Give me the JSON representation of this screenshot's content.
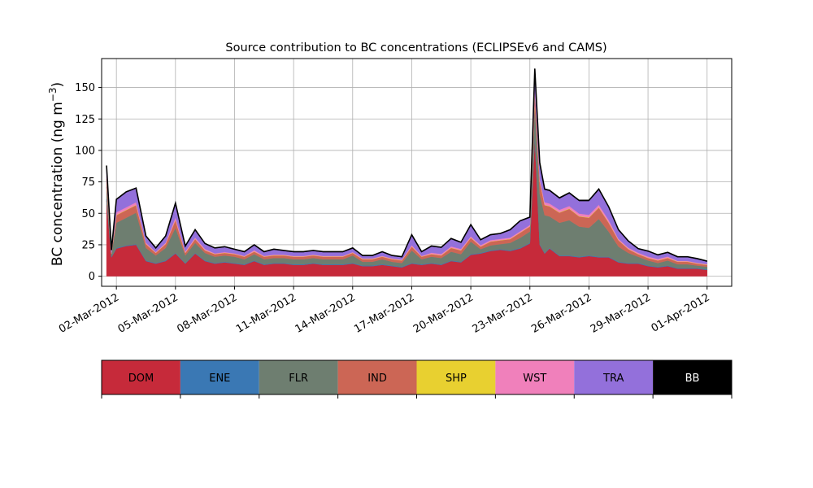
{
  "chart_data": {
    "type": "area",
    "stacked": true,
    "title": "Source contribution to BC concentrations (ECLIPSEv6 and CAMS)",
    "ylabel": "BC concentration (ng m",
    "ylabel_superscript": "−3",
    "ylabel_close": ")",
    "ylim": [
      -8,
      173
    ],
    "yticks": [
      0,
      25,
      50,
      75,
      100,
      125,
      150
    ],
    "xticks": [
      "02-Mar-2012",
      "05-Mar-2012",
      "08-Mar-2012",
      "11-Mar-2012",
      "14-Mar-2012",
      "17-Mar-2012",
      "20-Mar-2012",
      "23-Mar-2012",
      "26-Mar-2012",
      "29-Mar-2012",
      "01-Apr-2012"
    ],
    "xlim": [
      "2012-03-01T06:00",
      "2012-04-02T06:00"
    ],
    "grid": true,
    "x": [
      "2012-03-01T12:00",
      "2012-03-01T18:00",
      "2012-03-02T00:00",
      "2012-03-02T12:00",
      "2012-03-03T00:00",
      "2012-03-03T12:00",
      "2012-03-04T00:00",
      "2012-03-04T12:00",
      "2012-03-05T00:00",
      "2012-03-05T12:00",
      "2012-03-06T00:00",
      "2012-03-06T12:00",
      "2012-03-07T00:00",
      "2012-03-07T12:00",
      "2012-03-08T00:00",
      "2012-03-08T12:00",
      "2012-03-09T00:00",
      "2012-03-09T12:00",
      "2012-03-10T00:00",
      "2012-03-10T12:00",
      "2012-03-11T00:00",
      "2012-03-11T12:00",
      "2012-03-12T00:00",
      "2012-03-12T12:00",
      "2012-03-13T00:00",
      "2012-03-13T12:00",
      "2012-03-14T00:00",
      "2012-03-14T12:00",
      "2012-03-15T00:00",
      "2012-03-15T12:00",
      "2012-03-16T00:00",
      "2012-03-16T12:00",
      "2012-03-17T00:00",
      "2012-03-17T12:00",
      "2012-03-18T00:00",
      "2012-03-18T12:00",
      "2012-03-19T00:00",
      "2012-03-19T12:00",
      "2012-03-20T00:00",
      "2012-03-20T12:00",
      "2012-03-21T00:00",
      "2012-03-21T12:00",
      "2012-03-22T00:00",
      "2012-03-22T12:00",
      "2012-03-23T00:00",
      "2012-03-23T06:00",
      "2012-03-23T12:00",
      "2012-03-23T18:00",
      "2012-03-24T00:00",
      "2012-03-24T12:00",
      "2012-03-25T00:00",
      "2012-03-25T12:00",
      "2012-03-26T00:00",
      "2012-03-26T12:00",
      "2012-03-27T00:00",
      "2012-03-27T12:00",
      "2012-03-28T00:00",
      "2012-03-28T12:00",
      "2012-03-29T00:00",
      "2012-03-29T12:00",
      "2012-03-30T00:00",
      "2012-03-30T12:00",
      "2012-03-31T00:00",
      "2012-03-31T12:00",
      "2012-04-01T00:00"
    ],
    "series": [
      {
        "name": "DOM",
        "color": "#c62a3a",
        "values": [
          60,
          15,
          22,
          24,
          25,
          12,
          10,
          12,
          18,
          10,
          18,
          12,
          10,
          11,
          10,
          9,
          12,
          9,
          10,
          10,
          9,
          9,
          10,
          9,
          9,
          9,
          10,
          8,
          8,
          9,
          8,
          7,
          10,
          9,
          10,
          9,
          12,
          11,
          17,
          18,
          20,
          21,
          20,
          22,
          26,
          110,
          25,
          18,
          22,
          16,
          16,
          15,
          16,
          15,
          15,
          11,
          10,
          10,
          8,
          7,
          8,
          6,
          6,
          6,
          5
        ]
      },
      {
        "name": "ENE",
        "color": "#3a78b4",
        "values": [
          1,
          0.5,
          0.5,
          0.5,
          0.5,
          0.5,
          0.5,
          0.5,
          0.5,
          0.5,
          0.5,
          0.5,
          0.5,
          0.5,
          0.5,
          0.5,
          0.5,
          0.5,
          0.5,
          0.5,
          0.5,
          0.5,
          0.5,
          0.5,
          0.5,
          0.5,
          0.5,
          0.5,
          0.5,
          0.5,
          0.5,
          0.5,
          0.5,
          0.5,
          0.5,
          0.5,
          0.5,
          0.5,
          0.5,
          0.5,
          0.5,
          0.5,
          0.5,
          0.5,
          0.5,
          1,
          0.5,
          0.5,
          0.5,
          0.5,
          0.5,
          0.5,
          0.5,
          0.5,
          0.5,
          0.5,
          0.5,
          0.5,
          0.5,
          0.5,
          0.5,
          0.5,
          0.5,
          0.5,
          0.5
        ]
      },
      {
        "name": "FLR",
        "color": "#6e7e70",
        "values": [
          10,
          2,
          20,
          22,
          25,
          10,
          6,
          10,
          20,
          6,
          8,
          6,
          5,
          5,
          5,
          4,
          5,
          4,
          4,
          4,
          4,
          4,
          4,
          4,
          4,
          4,
          6,
          3,
          3,
          4,
          3,
          3,
          10,
          4,
          5,
          5,
          7,
          6,
          10,
          3,
          4,
          4,
          6,
          8,
          9,
          25,
          40,
          30,
          25,
          26,
          28,
          24,
          22,
          30,
          20,
          12,
          8,
          5,
          4,
          3,
          4,
          3,
          3,
          2,
          2
        ]
      },
      {
        "name": "IND",
        "color": "#cc6655",
        "values": [
          6,
          0.5,
          6,
          6,
          6,
          3,
          2,
          3,
          6,
          2,
          3,
          2,
          2,
          2,
          2,
          2,
          2,
          2,
          2,
          2,
          2,
          2,
          2,
          2,
          2,
          2,
          2,
          2,
          2,
          2,
          2,
          2,
          3,
          2,
          2,
          2,
          3,
          3,
          3,
          2,
          3,
          3,
          3,
          4,
          4,
          10,
          10,
          8,
          8,
          8,
          9,
          8,
          8,
          9,
          7,
          5,
          3,
          2,
          2,
          2,
          2,
          2,
          2,
          1.5,
          1.5
        ]
      },
      {
        "name": "SHP",
        "color": "#e8d030",
        "values": [
          0.5,
          0.2,
          0.3,
          0.3,
          0.3,
          0.2,
          0.2,
          0.2,
          0.3,
          0.2,
          0.2,
          0.2,
          0.2,
          0.2,
          0.2,
          0.2,
          0.2,
          0.2,
          0.2,
          0.2,
          0.2,
          0.2,
          0.2,
          0.2,
          0.2,
          0.2,
          0.2,
          0.2,
          0.2,
          0.2,
          0.2,
          0.2,
          0.2,
          0.2,
          0.2,
          0.2,
          0.2,
          0.2,
          0.2,
          0.2,
          0.2,
          0.2,
          0.2,
          0.2,
          0.2,
          0.5,
          0.3,
          0.3,
          0.3,
          0.3,
          0.3,
          0.3,
          0.3,
          0.3,
          0.3,
          0.2,
          0.2,
          0.2,
          0.2,
          0.2,
          0.2,
          0.2,
          0.2,
          0.2,
          0.2
        ]
      },
      {
        "name": "WST",
        "color": "#f080bb",
        "values": [
          2,
          0.5,
          2,
          2,
          2,
          1,
          0.5,
          1,
          2,
          1,
          1,
          1,
          0.5,
          0.5,
          0.5,
          0.5,
          1,
          0.5,
          0.5,
          0.5,
          0.5,
          0.5,
          0.5,
          0.5,
          0.5,
          0.5,
          0.5,
          0.5,
          0.5,
          0.5,
          0.5,
          0.5,
          1,
          0.5,
          1,
          1,
          1,
          1,
          1,
          1,
          1,
          1,
          1,
          1,
          1,
          3,
          2,
          2,
          2,
          2,
          2,
          2,
          2,
          2,
          2,
          1,
          1,
          1,
          1,
          1,
          1,
          0.5,
          0.5,
          0.5,
          0.5
        ]
      },
      {
        "name": "TRA",
        "color": "#9370db",
        "values": [
          8,
          2,
          10,
          12,
          11,
          5,
          3,
          5,
          11,
          4,
          6,
          4,
          4,
          4,
          3,
          3,
          4,
          3,
          4,
          3,
          3,
          3,
          3,
          3,
          3,
          3,
          3,
          2,
          2,
          3,
          2,
          2,
          8,
          3,
          5,
          5,
          6,
          5,
          9,
          4,
          4,
          4,
          6,
          8,
          6,
          15,
          12,
          10,
          10,
          9,
          10,
          10,
          11,
          12,
          10,
          7,
          5,
          3,
          4,
          3,
          3,
          3,
          3,
          3,
          2
        ]
      },
      {
        "name": "BB",
        "color": "#000000",
        "values": [
          0.5,
          0.2,
          0.3,
          0.3,
          0.3,
          0.3,
          0.3,
          0.3,
          0.3,
          0.3,
          0.3,
          0.3,
          0.3,
          0.3,
          0.3,
          0.3,
          0.3,
          0.3,
          0.3,
          0.3,
          0.3,
          0.3,
          0.3,
          0.3,
          0.3,
          0.3,
          0.3,
          0.3,
          0.3,
          0.3,
          0.3,
          0.3,
          0.3,
          0.3,
          0.3,
          0.3,
          0.3,
          0.3,
          0.3,
          0.3,
          0.3,
          0.3,
          0.3,
          0.3,
          0.3,
          0.5,
          0.5,
          0.5,
          0.5,
          0.5,
          0.5,
          0.5,
          0.5,
          0.5,
          0.5,
          0.3,
          0.3,
          0.3,
          0.3,
          0.3,
          0.3,
          0.3,
          0.3,
          0.3,
          0.3
        ]
      }
    ],
    "legend": {
      "position": "below",
      "items": [
        {
          "label": "DOM",
          "color": "#c62a3a",
          "text_color": "#000000"
        },
        {
          "label": "ENE",
          "color": "#3a78b4",
          "text_color": "#000000"
        },
        {
          "label": "FLR",
          "color": "#6e7e70",
          "text_color": "#000000"
        },
        {
          "label": "IND",
          "color": "#cc6655",
          "text_color": "#000000"
        },
        {
          "label": "SHP",
          "color": "#e8d030",
          "text_color": "#000000"
        },
        {
          "label": "WST",
          "color": "#f080bb",
          "text_color": "#000000"
        },
        {
          "label": "TRA",
          "color": "#9370db",
          "text_color": "#000000"
        },
        {
          "label": "BB",
          "color": "#000000",
          "text_color": "#ffffff"
        }
      ]
    }
  }
}
